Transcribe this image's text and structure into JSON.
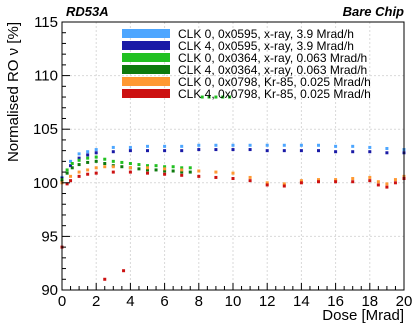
{
  "chart_data": {
    "type": "scatter",
    "title_left": "RD53A",
    "title_right": "Bare Chip",
    "xlabel": "Dose [Mrad]",
    "ylabel": "Normalised RO ν [%]",
    "xlim": [
      0,
      20
    ],
    "ylim": [
      90,
      115
    ],
    "xticks": [
      0,
      2,
      4,
      6,
      8,
      10,
      12,
      14,
      16,
      18,
      20
    ],
    "yticks": [
      90,
      95,
      100,
      105,
      110,
      115
    ],
    "grid": true,
    "legend_position": "top-right",
    "series": [
      {
        "name": "CLK 0, 0x0595, x-ray, 3.9 Mrad/h",
        "color": "#4da6ff",
        "x": [
          0,
          0.5,
          1,
          1.5,
          2,
          3,
          4,
          5,
          6,
          7,
          8,
          9,
          10,
          11,
          12,
          13,
          14,
          15,
          16,
          17,
          18,
          19,
          20
        ],
        "y": [
          100.5,
          102,
          102.7,
          102.9,
          103.1,
          103.3,
          103.3,
          103.4,
          103.4,
          103.4,
          103.5,
          103.5,
          103.5,
          103.5,
          103.5,
          103.5,
          103.5,
          103.5,
          103.4,
          103.4,
          103.3,
          103.2,
          103.1
        ]
      },
      {
        "name": "CLK 4, 0x0595, x-ray, 3.9 Mrad/h",
        "color": "#1a1aa6",
        "x": [
          0,
          0.5,
          1,
          1.5,
          2,
          3,
          4,
          5,
          6,
          7,
          8,
          9,
          10,
          11,
          12,
          13,
          14,
          15,
          16,
          17,
          18,
          19,
          20
        ],
        "y": [
          100.4,
          101.6,
          102.3,
          102.6,
          102.8,
          102.9,
          103.0,
          103.0,
          103.0,
          103.0,
          103.1,
          103.1,
          103.1,
          103.1,
          103.0,
          103.0,
          103.0,
          103.0,
          102.9,
          102.9,
          102.9,
          102.8,
          102.8
        ]
      },
      {
        "name": "CLK 0, 0x0364, x-ray, 0.063 Mrad/h",
        "color": "#22c122",
        "x": [
          0,
          0.3,
          0.6,
          1,
          1.5,
          2,
          2.5,
          3,
          3.5,
          4,
          4.5,
          5,
          5.5,
          6,
          6.5,
          7,
          7.5,
          8.2,
          8.6,
          9,
          9.4,
          9.8
        ],
        "y": [
          100.3,
          101.2,
          101.8,
          102.1,
          102.3,
          102.4,
          102.2,
          102.0,
          101.9,
          101.8,
          101.7,
          101.6,
          101.6,
          101.5,
          101.5,
          101.4,
          101.4,
          108.0,
          108.0,
          108.0,
          108.0,
          108.0
        ]
      },
      {
        "name": "CLK 4, 0x0364, x-ray, 0.063 Mrad/h",
        "color": "#0e7a0e",
        "x": [
          0,
          0.3,
          0.6,
          1,
          1.5,
          2,
          2.5,
          3,
          3.5,
          4,
          4.5,
          5,
          5.5,
          6,
          6.5,
          7,
          7.5
        ],
        "y": [
          100.1,
          100.9,
          101.4,
          101.7,
          101.9,
          102.0,
          101.8,
          101.6,
          101.5,
          101.4,
          101.3,
          101.2,
          101.2,
          101.1,
          101.1,
          101.0,
          101.0
        ]
      },
      {
        "name": "CLK 0, 0x0798, Kr-85, 0.025 Mrad/h",
        "color": "#ff9933",
        "x": [
          0,
          0.5,
          1,
          1.5,
          2,
          2.5,
          3,
          4,
          5,
          6,
          7,
          8,
          9,
          10,
          11,
          12,
          13,
          14,
          15,
          16,
          17,
          18,
          18.5,
          19,
          19.5,
          20
        ],
        "y": [
          100.0,
          100.6,
          101.0,
          101.2,
          101.4,
          101.5,
          101.5,
          101.4,
          101.4,
          101.3,
          101.2,
          101.1,
          101.0,
          100.9,
          100.5,
          100.0,
          99.9,
          100.2,
          100.3,
          100.3,
          100.4,
          100.5,
          100.1,
          99.9,
          100.3,
          100.6
        ]
      },
      {
        "name": "CLK 4, 0x0798, Kr-85, 0.025 Mrad/h",
        "color": "#cc1111",
        "x": [
          0,
          0.3,
          0.5,
          1,
          1.5,
          2,
          2.5,
          3,
          3.6,
          4,
          5,
          6,
          7,
          8,
          9,
          10,
          11,
          12,
          13,
          14,
          15,
          16,
          17,
          18,
          18.5,
          19,
          19.5,
          20
        ],
        "y": [
          94.0,
          99.9,
          100.2,
          100.6,
          100.8,
          100.9,
          91.0,
          101.0,
          91.8,
          101.0,
          100.9,
          100.8,
          100.7,
          100.6,
          100.5,
          100.4,
          100.2,
          99.8,
          99.7,
          100.0,
          100.1,
          100.1,
          100.1,
          100.2,
          99.8,
          99.6,
          100.0,
          100.4
        ]
      }
    ]
  }
}
